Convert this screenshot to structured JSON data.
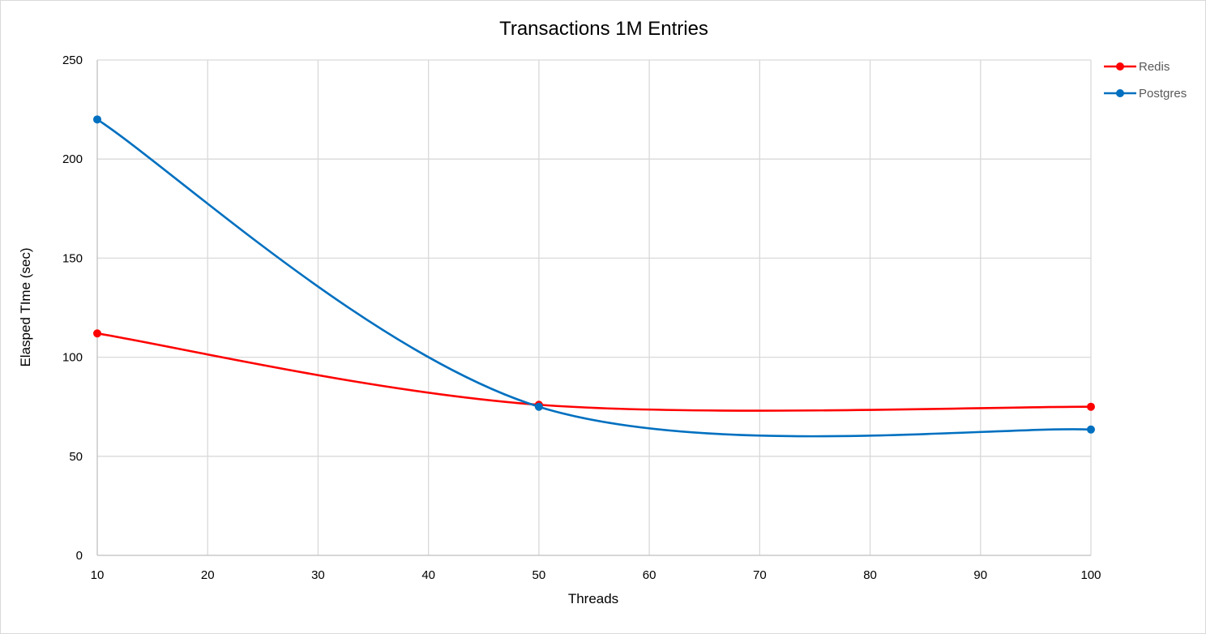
{
  "chart_data": {
    "type": "line",
    "title": "Transactions 1M Entries",
    "xlabel": "Threads",
    "ylabel": "Elasped TIme (sec)",
    "x": [
      10,
      50,
      100
    ],
    "xlim": [
      10,
      100
    ],
    "xticks": [
      10,
      20,
      30,
      40,
      50,
      60,
      70,
      80,
      90,
      100
    ],
    "ylim": [
      0,
      250
    ],
    "yticks": [
      0,
      50,
      100,
      150,
      200,
      250
    ],
    "grid": true,
    "smooth": true,
    "legend": "top-right",
    "series": [
      {
        "name": "Redis",
        "color": "#ff0000",
        "values": [
          112,
          76,
          75
        ]
      },
      {
        "name": "Postgres",
        "color": "#0070c0",
        "values": [
          220,
          75,
          63.5
        ]
      }
    ]
  }
}
